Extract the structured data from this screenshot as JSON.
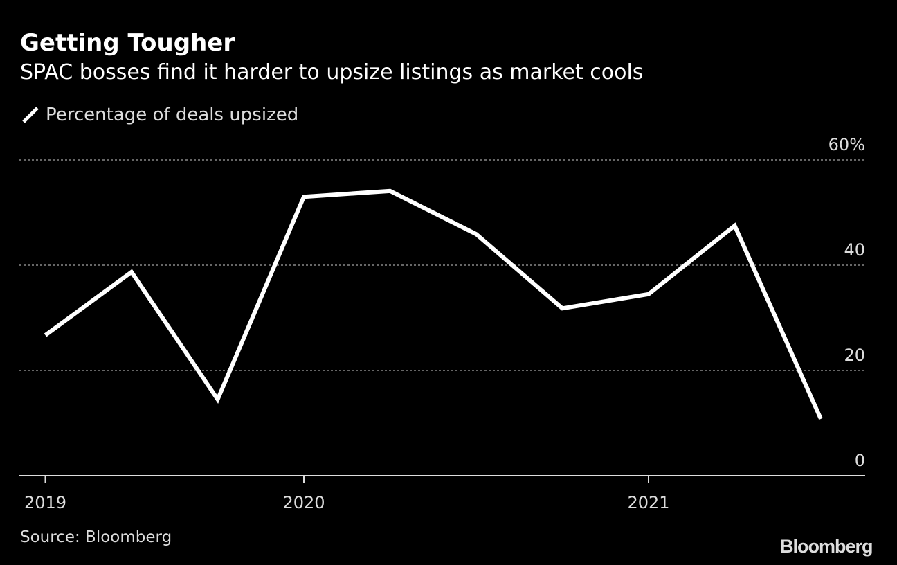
{
  "chart_data": {
    "type": "line",
    "title": "Getting Tougher",
    "subtitle": "SPAC bosses find it harder to upsize listings as market cools",
    "legend": [
      {
        "name": "Percentage of deals upsized",
        "color": "#ffffff"
      }
    ],
    "legend_placement": "top-left",
    "x": [
      2019.25,
      2019.5,
      2019.75,
      2020.0,
      2020.25,
      2020.5,
      2020.75,
      2021.0,
      2021.25,
      2021.5
    ],
    "series": [
      {
        "name": "Percentage of deals upsized",
        "values": [
          26.7,
          38.7,
          14.5,
          53.0,
          54.1,
          45.9,
          31.8,
          34.5,
          47.5,
          10.8
        ]
      }
    ],
    "xlim": [
      2019.18,
      2021.64
    ],
    "ylim": [
      0,
      60
    ],
    "xticks": [
      {
        "value": 2019.25,
        "label": "2019"
      },
      {
        "value": 2020.0,
        "label": "2020"
      },
      {
        "value": 2021.0,
        "label": "2021"
      }
    ],
    "yticks": [
      {
        "value": 0,
        "label": "0"
      },
      {
        "value": 20,
        "label": "20"
      },
      {
        "value": 40,
        "label": "40"
      },
      {
        "value": 60,
        "label": "60%"
      }
    ],
    "grid": true,
    "xlabel": "",
    "ylabel": ""
  },
  "source": "Source: Bloomberg",
  "logo": "Bloomberg",
  "colors": {
    "background": "#000000",
    "line": "#ffffff",
    "grid": "#888888"
  }
}
